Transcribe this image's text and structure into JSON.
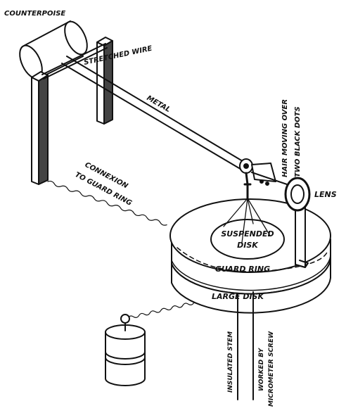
{
  "labels": {
    "counterpoise": "COUNTERPOISE",
    "stretched_wire": "STRETCHED WIRE",
    "metal": "METAL",
    "hair_line1": "HAIR MOVING OVER",
    "hair_line2": "TWO BLACK DOTS",
    "lens": "LENS",
    "connexion_line1": "CONNEXION",
    "connexion_line2": "TO GUARD RING",
    "suspended_line1": "SUSPENDED",
    "suspended_line2": "DISK",
    "guard_ring": "GUARD RING",
    "large_disk": "LARGE DISK",
    "insulated_stem": "INSULATED STEM",
    "worked_line1": "WORKED BY",
    "worked_line2": "MICROMETER SCREW"
  },
  "colors": {
    "ink": "#111111",
    "paper": "#ffffff"
  }
}
